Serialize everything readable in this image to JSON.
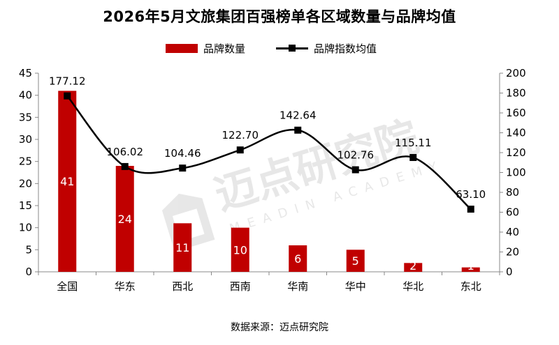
{
  "chart_data": {
    "type": "bar",
    "title": "2026年5月文旅集团百强榜单各区域数量与品牌均值",
    "categories": [
      "全国",
      "华东",
      "西北",
      "西南",
      "华南",
      "华中",
      "华北",
      "东北"
    ],
    "series": [
      {
        "name": "品牌数量",
        "type": "bar",
        "axis": "left",
        "values": [
          41,
          24,
          11,
          10,
          6,
          5,
          2,
          1
        ],
        "labels": [
          "41",
          "24",
          "11",
          "10",
          "6",
          "5",
          "2",
          "1"
        ]
      },
      {
        "name": "品牌指数均值",
        "type": "line",
        "axis": "right",
        "smooth": true,
        "values": [
          177.12,
          106.02,
          104.46,
          122.7,
          142.64,
          102.76,
          115.11,
          63.1
        ],
        "labels": [
          "177.12",
          "106.02",
          "104.46",
          "122.70",
          "142.64",
          "102.76",
          "115.11",
          "63.10"
        ]
      }
    ],
    "y_left": {
      "min": 0,
      "max": 45,
      "step": 5,
      "ticks": [
        "0",
        "5",
        "10",
        "15",
        "20",
        "25",
        "30",
        "35",
        "40",
        "45"
      ]
    },
    "y_right": {
      "min": 0,
      "max": 200,
      "step": 20,
      "ticks": [
        "0",
        "20",
        "40",
        "60",
        "80",
        "100",
        "120",
        "140",
        "160",
        "180",
        "200"
      ]
    },
    "grid": false,
    "legend_position": "top-center",
    "colors": {
      "bar": "#c00000",
      "line": "#000000",
      "bar_label": "#ffffff"
    }
  },
  "watermark": {
    "cn": "迈点研究院",
    "en": "MEADIN ACADEMY"
  },
  "source": "数据来源：迈点研究院"
}
